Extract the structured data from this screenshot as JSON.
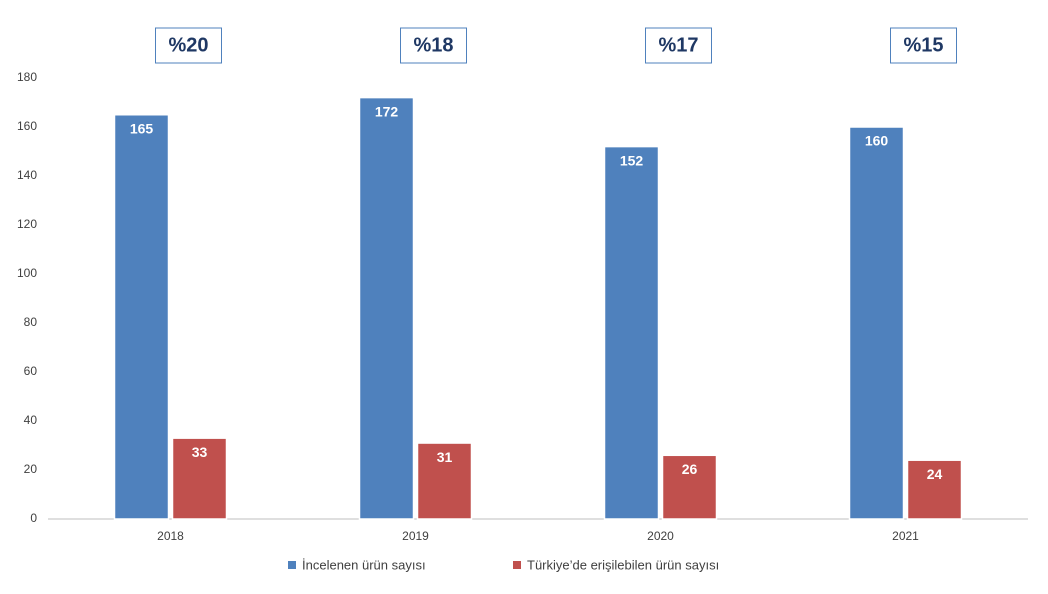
{
  "chart_data": {
    "type": "bar",
    "categories": [
      "2018",
      "2019",
      "2020",
      "2021"
    ],
    "series": [
      {
        "name": "İncelenen ürün sayısı",
        "color": "#4f81bd",
        "values": [
          165,
          172,
          152,
          160
        ]
      },
      {
        "name": "Türkiye’de erişilebilen ürün sayısı",
        "color": "#c0504d",
        "values": [
          33,
          31,
          26,
          24
        ]
      }
    ],
    "annotations": [
      "%20",
      "%18",
      "%17",
      "%15"
    ],
    "ylim": [
      0,
      180
    ],
    "yticks": [
      0,
      20,
      40,
      60,
      80,
      100,
      120,
      140,
      160,
      180
    ],
    "grid": false,
    "legend": "bottom"
  }
}
